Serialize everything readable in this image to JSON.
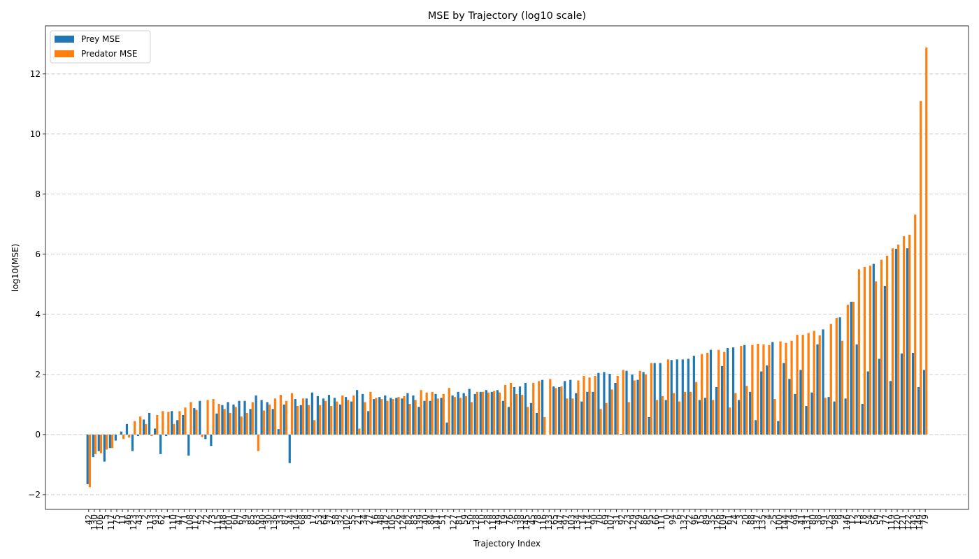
{
  "chart_data": {
    "type": "bar",
    "title": "MSE by Trajectory (log10 scale)",
    "xlabel": "Trajectory Index",
    "ylabel": "log10(MSE)",
    "categories": [
      "42",
      "130",
      "106",
      "5",
      "117",
      "75",
      "11",
      "46",
      "123",
      "43",
      "2",
      "113",
      "93",
      "62",
      "1",
      "110",
      "47",
      "71",
      "108",
      "112",
      "52",
      "72",
      "73",
      "115",
      "148",
      "101",
      "60",
      "67",
      "39",
      "85",
      "63",
      "140",
      "30",
      "136",
      "33",
      "87",
      "44",
      "104",
      "68",
      "8",
      "17",
      "53",
      "64",
      "37",
      "58",
      "32",
      "102",
      "55",
      "21",
      "34",
      "27",
      "16",
      "48",
      "142",
      "105",
      "26",
      "124",
      "82",
      "83",
      "139",
      "40",
      "84",
      "141",
      "51",
      "7",
      "127",
      "81",
      "59",
      "50",
      "128",
      "10",
      "28",
      "118",
      "49",
      "19",
      "76",
      "36",
      "138",
      "145",
      "45",
      "78",
      "116",
      "133",
      "65",
      "147",
      "97",
      "103",
      "134",
      "14",
      "114",
      "90",
      "70",
      "69",
      "107",
      "31",
      "92",
      "23",
      "129",
      "29",
      "86",
      "95",
      "66",
      "111",
      "0",
      "94",
      "6",
      "132",
      "22",
      "96",
      "15",
      "89",
      "35",
      "126",
      "109",
      "61",
      "24",
      "3",
      "20",
      "88",
      "137",
      "135",
      "4",
      "25",
      "100",
      "144",
      "74",
      "99",
      "41",
      "131",
      "80",
      "38",
      "91",
      "125",
      "98",
      "9",
      "146",
      "12",
      "13",
      "18",
      "54",
      "56",
      "57",
      "77",
      "119",
      "120",
      "121",
      "122",
      "143",
      "149",
      "79"
    ],
    "series": [
      {
        "name": "Prey MSE",
        "color": "#1f77b4",
        "values": [
          -1.65,
          -0.75,
          -0.55,
          -0.9,
          -0.45,
          -0.2,
          0.1,
          0.35,
          -0.55,
          -0.05,
          0.5,
          0.72,
          0.2,
          -0.65,
          -0.05,
          0.78,
          0.48,
          0.65,
          -0.7,
          0.88,
          1.12,
          -0.15,
          -0.38,
          0.7,
          0.98,
          1.08,
          1.0,
          1.12,
          1.12,
          0.85,
          1.3,
          1.15,
          1.08,
          0.85,
          0.18,
          1.0,
          -0.95,
          1.18,
          0.98,
          1.2,
          1.4,
          1.28,
          1.2,
          1.32,
          1.22,
          1.0,
          1.25,
          1.1,
          1.48,
          1.35,
          0.78,
          1.18,
          1.25,
          1.3,
          1.22,
          1.22,
          1.2,
          1.38,
          1.3,
          0.92,
          1.12,
          1.12,
          1.35,
          1.22,
          0.4,
          1.3,
          1.42,
          1.38,
          1.52,
          1.35,
          1.42,
          1.48,
          1.42,
          1.48,
          1.12,
          0.92,
          1.58,
          1.6,
          1.72,
          1.05,
          0.72,
          1.82,
          0.0,
          1.6,
          1.58,
          1.78,
          1.82,
          1.38,
          1.1,
          1.42,
          1.42,
          2.05,
          2.08,
          2.02,
          1.72,
          0.02,
          2.12,
          2.0,
          1.82,
          2.08,
          0.58,
          2.38,
          2.38,
          1.15,
          2.48,
          2.5,
          2.5,
          2.52,
          2.62,
          1.15,
          1.22,
          2.82,
          1.58,
          2.28,
          2.88,
          2.9,
          1.15,
          2.98,
          1.42,
          0.48,
          2.1,
          2.3,
          3.08,
          0.45,
          2.38,
          1.85,
          1.35,
          2.15,
          0.95,
          1.4,
          3.0,
          3.5,
          1.25,
          1.1,
          3.9,
          1.2,
          4.42,
          3.0,
          1.02,
          2.1,
          5.68,
          2.52,
          4.95,
          1.78,
          6.18,
          2.7,
          6.2,
          2.72,
          1.58,
          2.15
        ]
      },
      {
        "name": "Predator MSE",
        "color": "#ff7f0e",
        "values": [
          -1.75,
          -0.65,
          -0.62,
          -0.5,
          -0.45,
          0.0,
          -0.15,
          -0.1,
          0.45,
          0.6,
          0.35,
          -0.05,
          0.65,
          0.78,
          0.75,
          0.35,
          0.78,
          0.9,
          1.08,
          0.82,
          -0.08,
          1.15,
          1.18,
          1.02,
          0.85,
          0.72,
          0.92,
          0.6,
          0.72,
          1.08,
          -0.55,
          0.8,
          1.0,
          1.2,
          1.32,
          1.12,
          1.38,
          0.95,
          1.2,
          0.98,
          0.48,
          0.98,
          1.12,
          0.95,
          1.1,
          1.3,
          1.15,
          1.3,
          0.2,
          1.08,
          1.42,
          1.22,
          1.18,
          1.12,
          1.18,
          1.25,
          1.28,
          1.02,
          1.15,
          1.48,
          1.4,
          1.42,
          1.2,
          1.35,
          1.55,
          1.25,
          1.22,
          1.28,
          1.08,
          1.42,
          1.42,
          1.4,
          1.45,
          1.4,
          1.65,
          1.72,
          1.35,
          1.32,
          0.92,
          1.72,
          1.78,
          0.58,
          1.85,
          1.55,
          1.6,
          1.2,
          1.2,
          1.8,
          1.95,
          1.9,
          1.95,
          0.85,
          1.05,
          1.5,
          1.95,
          2.15,
          1.08,
          1.8,
          2.12,
          2.0,
          2.38,
          1.15,
          1.28,
          2.5,
          1.38,
          1.1,
          1.42,
          1.42,
          1.75,
          2.68,
          2.72,
          1.15,
          2.82,
          2.75,
          0.9,
          1.38,
          2.95,
          1.62,
          2.98,
          3.02,
          3.0,
          2.98,
          1.18,
          3.1,
          3.05,
          3.12,
          3.32,
          3.32,
          3.38,
          3.45,
          3.3,
          1.22,
          3.68,
          3.88,
          3.12,
          4.32,
          4.42,
          5.5,
          5.58,
          5.62,
          5.1,
          5.82,
          5.95,
          6.2,
          6.32,
          6.6,
          6.65,
          7.32,
          11.1,
          12.88
        ]
      }
    ],
    "ylim": [
      -2.49,
      13.6
    ],
    "yticks": [
      {
        "value": -2,
        "label": "−2"
      },
      0,
      2,
      4,
      6,
      8,
      10,
      12
    ],
    "grid": true,
    "legend": "upper left"
  }
}
